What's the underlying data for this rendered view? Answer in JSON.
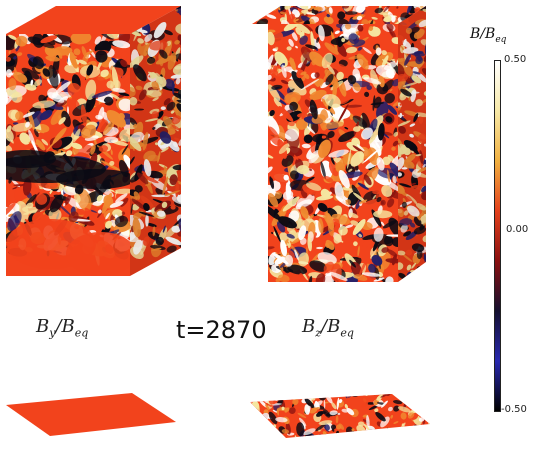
{
  "panels": {
    "left": {
      "label_main": "B",
      "label_sub": "y",
      "label_den": "B",
      "label_den_sub": "eq"
    },
    "right": {
      "label_main": "B",
      "label_sub": "z",
      "label_den": "B",
      "label_den_sub": "eq"
    }
  },
  "time_label": "t=2870",
  "colorbar": {
    "title_main": "B",
    "title_den": "B",
    "title_den_sub": "eq",
    "ticks": [
      "0.50",
      "0.00",
      "-0.50"
    ],
    "colors": [
      "#ffffff",
      "#f7e9a8",
      "#f0b040",
      "#e3401c",
      "#8a1010",
      "#151030",
      "#2828b0",
      "#000000"
    ]
  },
  "palette": {
    "base_red": "#f2431c",
    "orange": "#f08a30",
    "yellow": "#f5e6a0",
    "white": "#ffffff",
    "black": "#0a0a14",
    "navy": "#23206a",
    "darkred": "#8b1410"
  }
}
